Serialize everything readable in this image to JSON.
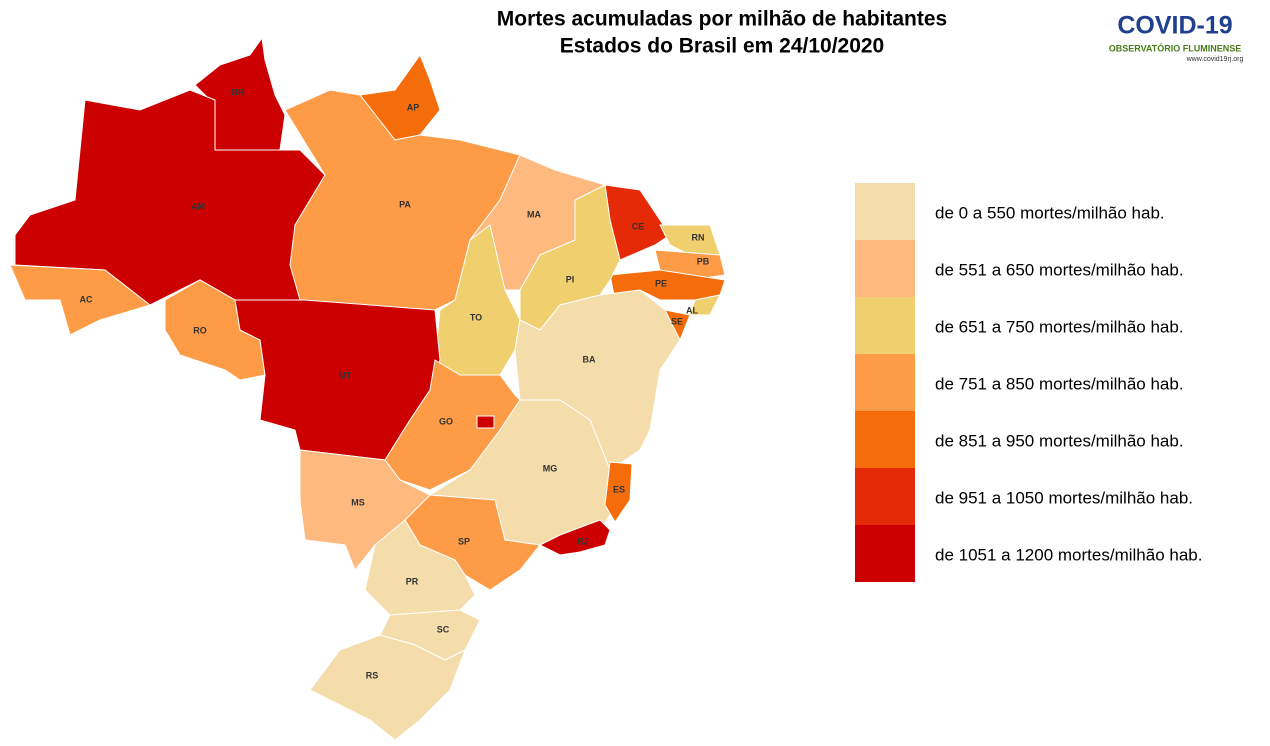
{
  "title": [
    "Mortes acumuladas por milhão de habitantes",
    "Estados do Brasil em 24/10/2020"
  ],
  "logo": {
    "name": "COVID-19",
    "subtitle": "OBSERVATÓRIO FLUMINENSE",
    "url": "www.covid19rj.org"
  },
  "legend": [
    {
      "label": "de 0 a 550 mortes/milhão hab.",
      "color": "#f4dcab"
    },
    {
      "label": "de 551 a 650 mortes/milhão hab.",
      "color": "#fdb97e"
    },
    {
      "label": "de 651 a 750 mortes/milhão hab.",
      "color": "#f0cf6f"
    },
    {
      "label": "de 751 a 850 mortes/milhão hab.",
      "color": "#fd9b46"
    },
    {
      "label": "de 851 a 950 mortes/milhão hab.",
      "color": "#f46d0a"
    },
    {
      "label": "de 951 a 1050 mortes/milhão hab.",
      "color": "#e42a06"
    },
    {
      "label": "de 1051 a 1200  mortes/milhão hab.",
      "color": "#cc0000"
    }
  ],
  "states": [
    {
      "label": "RR",
      "color": "#cc0000"
    },
    {
      "label": "AP",
      "color": "#f46d0a"
    },
    {
      "label": "AM",
      "color": "#cc0000"
    },
    {
      "label": "PA",
      "color": "#fd9b46"
    },
    {
      "label": "MA",
      "color": "#fdb97e"
    },
    {
      "label": "CE",
      "color": "#e42a06"
    },
    {
      "label": "RN",
      "color": "#f0cf6f"
    },
    {
      "label": "PB",
      "color": "#fd9b46"
    },
    {
      "label": "PE",
      "color": "#f46d0a"
    },
    {
      "label": "AL",
      "color": "#f0cf6f"
    },
    {
      "label": "SE",
      "color": "#f46d0a"
    },
    {
      "label": "PI",
      "color": "#f0cf6f"
    },
    {
      "label": "TO",
      "color": "#f0cf6f"
    },
    {
      "label": "BA",
      "color": "#f4dcab"
    },
    {
      "label": "AC",
      "color": "#fd9b46"
    },
    {
      "label": "RO",
      "color": "#fd9b46"
    },
    {
      "label": "MT",
      "color": "#cc0000"
    },
    {
      "label": "GO",
      "color": "#fd9b46"
    },
    {
      "label": null,
      "color": "#cc0000"
    },
    {
      "label": "MG",
      "color": "#f4dcab"
    },
    {
      "label": "ES",
      "color": "#f46d0a"
    },
    {
      "label": "RJ",
      "color": "#cc0000"
    },
    {
      "label": "SP",
      "color": "#fd9b46"
    },
    {
      "label": "MS",
      "color": "#fdb97e"
    },
    {
      "label": "PR",
      "color": "#f4dcab"
    },
    {
      "label": "SC",
      "color": "#f4dcab"
    },
    {
      "label": "RS",
      "color": "#f4dcab"
    }
  ]
}
